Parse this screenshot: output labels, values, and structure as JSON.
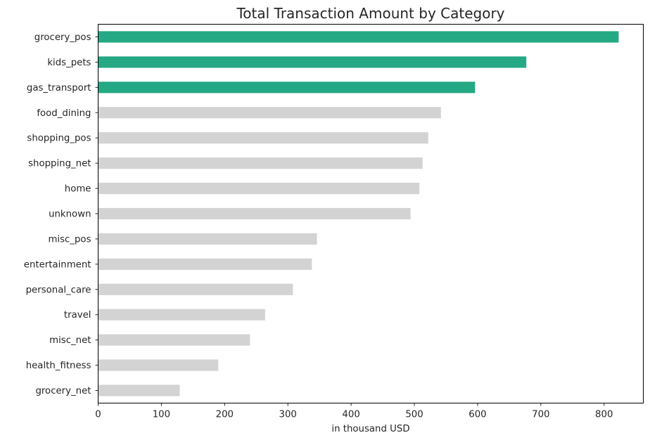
{
  "chart_data": {
    "type": "bar",
    "orientation": "horizontal",
    "title": "Total Transaction Amount by Category",
    "xlabel": "in thousand USD",
    "ylabel": "",
    "xlim": [
      0,
      862
    ],
    "xticks": [
      0,
      100,
      200,
      300,
      400,
      500,
      600,
      700,
      800
    ],
    "categories": [
      "grocery_pos",
      "kids_pets",
      "gas_transport",
      "food_dining",
      "shopping_pos",
      "shopping_net",
      "home",
      "unknown",
      "misc_pos",
      "entertainment",
      "personal_care",
      "travel",
      "misc_net",
      "health_fitness",
      "grocery_net"
    ],
    "values": [
      823,
      677,
      596,
      542,
      522,
      513,
      508,
      494,
      346,
      338,
      308,
      264,
      240,
      190,
      129
    ],
    "highlight_count": 3,
    "colors": {
      "highlight": "#25a884",
      "default": "#d3d3d3"
    },
    "grid": false,
    "legend": "none"
  }
}
